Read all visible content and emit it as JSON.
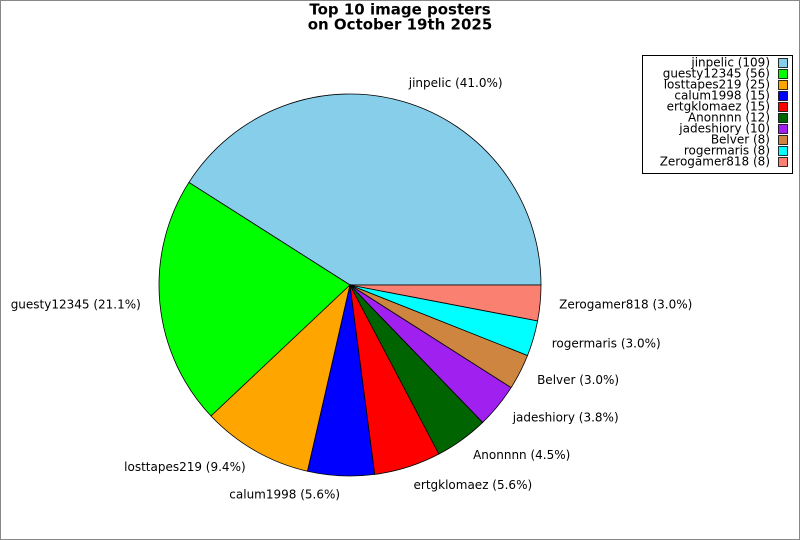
{
  "chart_data": {
    "type": "pie",
    "title": [
      "Top 10 image posters",
      "on October 19th 2025"
    ],
    "labels": [
      "jinpelic (41.0%)",
      "guesty12345 (21.1%)",
      "losttapes219 (9.4%)",
      "calum1998 (5.6%)",
      "ertgklomaez (5.6%)",
      "Anonnnn (4.5%)",
      "jadeshiory (3.8%)",
      "Belver (3.0%)",
      "rogermaris (3.0%)",
      "Zerogamer818 (3.0%)"
    ],
    "legend_labels": [
      "jinpelic (109)",
      "guesty12345 (56)",
      "losttapes219 (25)",
      "calum1998 (15)",
      "ertgklomaez (15)",
      "Anonnnn (12)",
      "jadeshiory (10)",
      "Belver (8)",
      "rogermaris (8)",
      "Zerogamer818 (8)"
    ],
    "values": [
      109,
      56,
      25,
      15,
      15,
      12,
      10,
      8,
      8,
      8
    ],
    "colors": [
      "#87ceeb",
      "#00ff00",
      "#ffa500",
      "#0000ff",
      "#ff0000",
      "#006400",
      "#a020f0",
      "#cd853f",
      "#00ffff",
      "#fa8072"
    ],
    "legend": "upper right"
  }
}
